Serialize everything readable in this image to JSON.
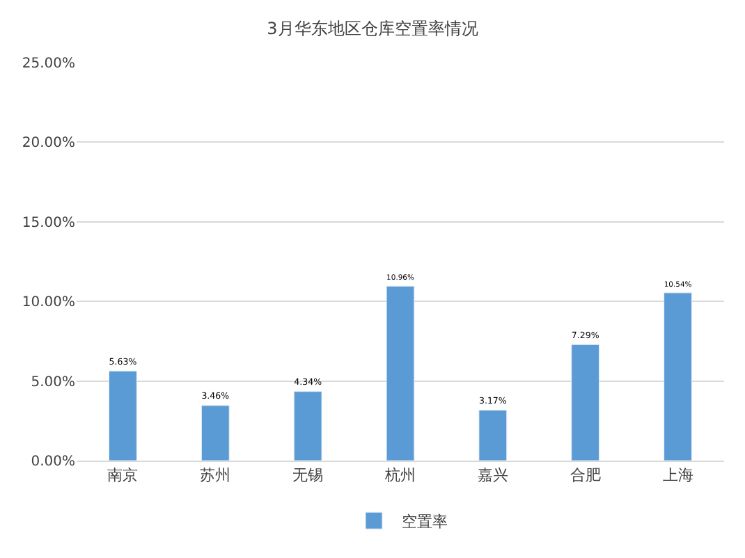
{
  "chart_data": {
    "type": "bar",
    "title": "3月华东地区仓库空置率情况",
    "categories": [
      "南京",
      "苏州",
      "无锡",
      "杭州",
      "嘉兴",
      "合肥",
      "上海"
    ],
    "series": [
      {
        "name": "空置率",
        "color": "#5b9bd5",
        "values": [
          5.63,
          3.46,
          4.34,
          10.96,
          3.17,
          7.29,
          10.54
        ],
        "value_labels": [
          "5.63%",
          "3.46%",
          "4.34%",
          "10.96%",
          "3.17%",
          "7.29%",
          "10.54%"
        ]
      }
    ],
    "ylim": [
      0,
      25
    ],
    "yticks": [
      {
        "value": 0,
        "label": "0.00%"
      },
      {
        "value": 5,
        "label": "5.00%"
      },
      {
        "value": 10,
        "label": "10.00%"
      },
      {
        "value": 15,
        "label": "15.00%"
      },
      {
        "value": 20,
        "label": "20.00%"
      },
      {
        "value": 25,
        "label": "25.00%"
      }
    ],
    "grid": "y",
    "legend": "bottom"
  }
}
